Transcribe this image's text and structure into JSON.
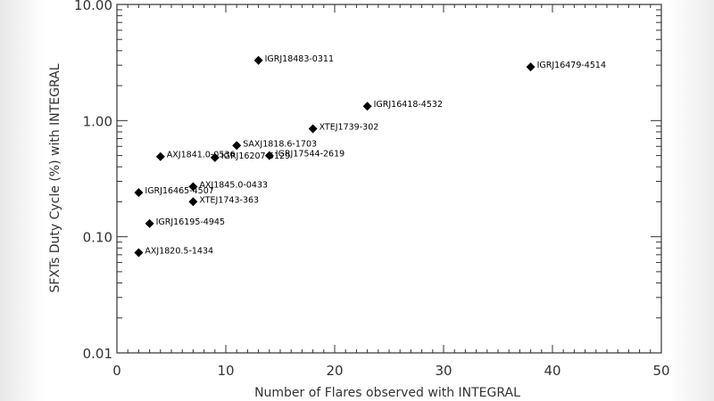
{
  "chart_data": {
    "type": "scatter",
    "title": "",
    "xlabel": "Number of Flares observed with INTEGRAL",
    "ylabel": "SFXTs Duty Cycle (%) with INTEGRAL",
    "xlim": [
      0,
      50
    ],
    "ylim": [
      0.01,
      10.0
    ],
    "yscale": "log",
    "grid": false,
    "legend": null,
    "x_ticks": [
      "0",
      "10",
      "20",
      "30",
      "40",
      "50"
    ],
    "y_ticks": [
      "0.01",
      "0.10",
      "1.00",
      "10.00"
    ],
    "marker": "diamond",
    "marker_color": "#000000",
    "points": [
      {
        "label": "IGRJ18483-0311",
        "x": 13,
        "y": 3.3
      },
      {
        "label": "IGRJ16479-4514",
        "x": 38,
        "y": 2.9
      },
      {
        "label": "IGRJ16418-4532",
        "x": 23,
        "y": 1.33
      },
      {
        "label": "XTEJ1739-302",
        "x": 18,
        "y": 0.85
      },
      {
        "label": "SAXJ1818.6-1703",
        "x": 11,
        "y": 0.61
      },
      {
        "label": "AXJ1841.0-0536",
        "x": 4,
        "y": 0.49
      },
      {
        "label": "IGRJ16207-5129",
        "x": 9,
        "y": 0.48
      },
      {
        "label": "IGRJ17544-2619",
        "x": 14,
        "y": 0.5
      },
      {
        "label": "AXJ1845.0-0433",
        "x": 7,
        "y": 0.27
      },
      {
        "label": "IGRJ16465-4507",
        "x": 2,
        "y": 0.24
      },
      {
        "label": "XTEJ1743-363",
        "x": 7,
        "y": 0.2
      },
      {
        "label": "IGRJ16195-4945",
        "x": 3,
        "y": 0.13
      },
      {
        "label": "AXJ1820.5-1434",
        "x": 2,
        "y": 0.073
      }
    ]
  }
}
